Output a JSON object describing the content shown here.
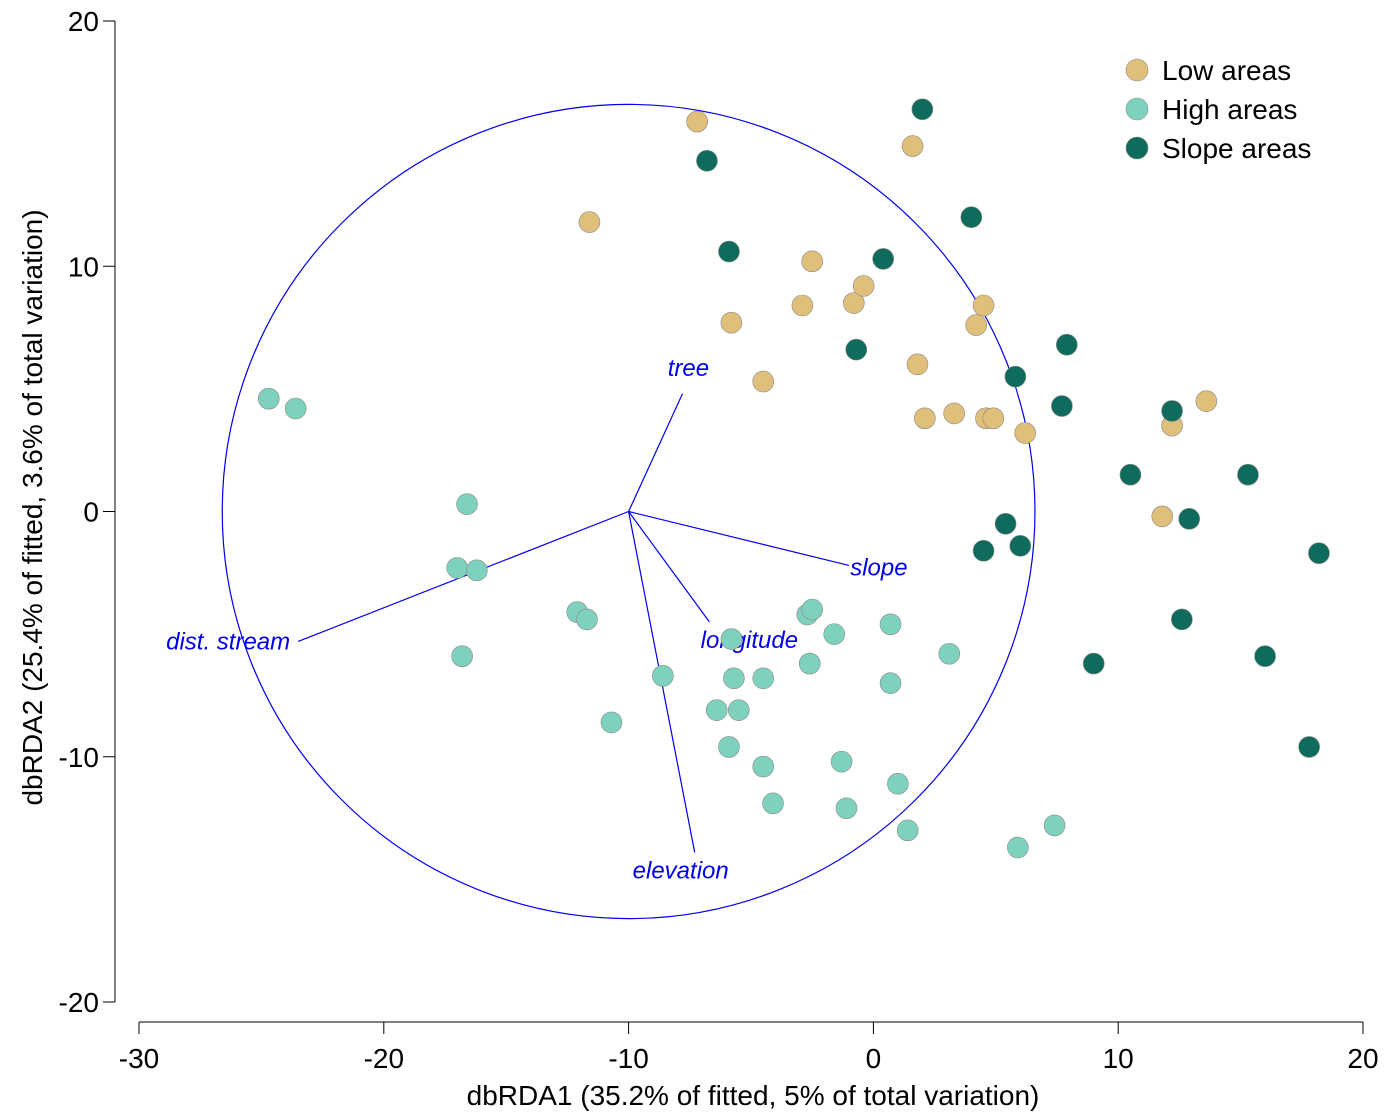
{
  "chart_data": {
    "type": "scatter",
    "xlabel": "dbRDA1 (35.2% of fitted, 5% of total variation)",
    "ylabel": "dbRDA2 (25.4% of fitted, 3.6% of total variation)",
    "xlim": [
      -30,
      20
    ],
    "ylim": [
      -20,
      20
    ],
    "x_ticks": [
      "-30",
      "-20",
      "-10",
      "0",
      "10",
      "20"
    ],
    "y_ticks": [
      "-20",
      "-10",
      "0",
      "10",
      "20"
    ],
    "grid": false,
    "legend_position": "top-right",
    "series": [
      {
        "name": "Low areas",
        "color": "#dfbf7a",
        "points": [
          [
            -7.2,
            15.9
          ],
          [
            -11.6,
            11.8
          ],
          [
            1.6,
            14.9
          ],
          [
            -2.5,
            10.2
          ],
          [
            -5.8,
            7.7
          ],
          [
            -2.9,
            8.4
          ],
          [
            -0.8,
            8.5
          ],
          [
            -0.4,
            9.2
          ],
          [
            4.5,
            8.4
          ],
          [
            4.2,
            7.6
          ],
          [
            -4.5,
            5.3
          ],
          [
            1.8,
            6.0
          ],
          [
            2.1,
            3.8
          ],
          [
            3.3,
            4.0
          ],
          [
            4.6,
            3.8
          ],
          [
            4.9,
            3.8
          ],
          [
            6.2,
            3.2
          ],
          [
            12.2,
            3.5
          ],
          [
            13.6,
            4.5
          ],
          [
            11.8,
            -0.2
          ]
        ]
      },
      {
        "name": "High areas",
        "color": "#7ed1bc",
        "points": [
          [
            -24.7,
            4.6
          ],
          [
            -23.6,
            4.2
          ],
          [
            -16.6,
            0.3
          ],
          [
            -17.0,
            -2.3
          ],
          [
            -16.2,
            -2.4
          ],
          [
            -16.8,
            -5.9
          ],
          [
            -12.1,
            -4.1
          ],
          [
            -11.7,
            -4.4
          ],
          [
            -10.7,
            -8.6
          ],
          [
            -8.6,
            -6.7
          ],
          [
            -5.8,
            -5.2
          ],
          [
            -5.7,
            -6.8
          ],
          [
            -6.4,
            -8.1
          ],
          [
            -5.5,
            -8.1
          ],
          [
            -5.9,
            -9.6
          ],
          [
            -4.5,
            -10.4
          ],
          [
            -4.5,
            -6.8
          ],
          [
            -4.1,
            -11.9
          ],
          [
            -2.7,
            -4.2
          ],
          [
            -2.5,
            -4.0
          ],
          [
            -2.6,
            -6.2
          ],
          [
            -1.6,
            -5.0
          ],
          [
            -1.3,
            -10.2
          ],
          [
            -1.1,
            -12.1
          ],
          [
            0.7,
            -4.6
          ],
          [
            0.7,
            -7.0
          ],
          [
            1.0,
            -11.1
          ],
          [
            1.4,
            -13.0
          ],
          [
            3.1,
            -5.8
          ],
          [
            5.9,
            -13.7
          ],
          [
            7.4,
            -12.8
          ]
        ]
      },
      {
        "name": "Slope areas",
        "color": "#0f6b5c",
        "points": [
          [
            2.0,
            16.4
          ],
          [
            -6.8,
            14.3
          ],
          [
            -5.9,
            10.6
          ],
          [
            0.4,
            10.3
          ],
          [
            4.0,
            12.0
          ],
          [
            -0.7,
            6.6
          ],
          [
            5.8,
            5.5
          ],
          [
            7.9,
            6.8
          ],
          [
            7.7,
            4.3
          ],
          [
            12.2,
            4.1
          ],
          [
            10.5,
            1.5
          ],
          [
            15.3,
            1.5
          ],
          [
            12.9,
            -0.3
          ],
          [
            5.4,
            -0.5
          ],
          [
            6.0,
            -1.4
          ],
          [
            4.5,
            -1.6
          ],
          [
            18.2,
            -1.7
          ],
          [
            12.6,
            -4.4
          ],
          [
            9.0,
            -6.2
          ],
          [
            16.0,
            -5.9
          ],
          [
            17.8,
            -9.6
          ]
        ]
      }
    ],
    "vectors": {
      "color": "#0000ee",
      "origin": [
        -10,
        0
      ],
      "circle_radius": 16.6,
      "arrows": [
        {
          "label": "tree",
          "end": [
            -7.8,
            4.8
          ]
        },
        {
          "label": "slope",
          "end": [
            -1.0,
            -2.2
          ]
        },
        {
          "label": "dist. stream",
          "end": [
            -23.5,
            -5.3
          ]
        },
        {
          "label": "longitude",
          "end": [
            -6.7,
            -4.5
          ]
        },
        {
          "label": "elevation",
          "end": [
            -7.3,
            -13.9
          ]
        }
      ]
    }
  }
}
